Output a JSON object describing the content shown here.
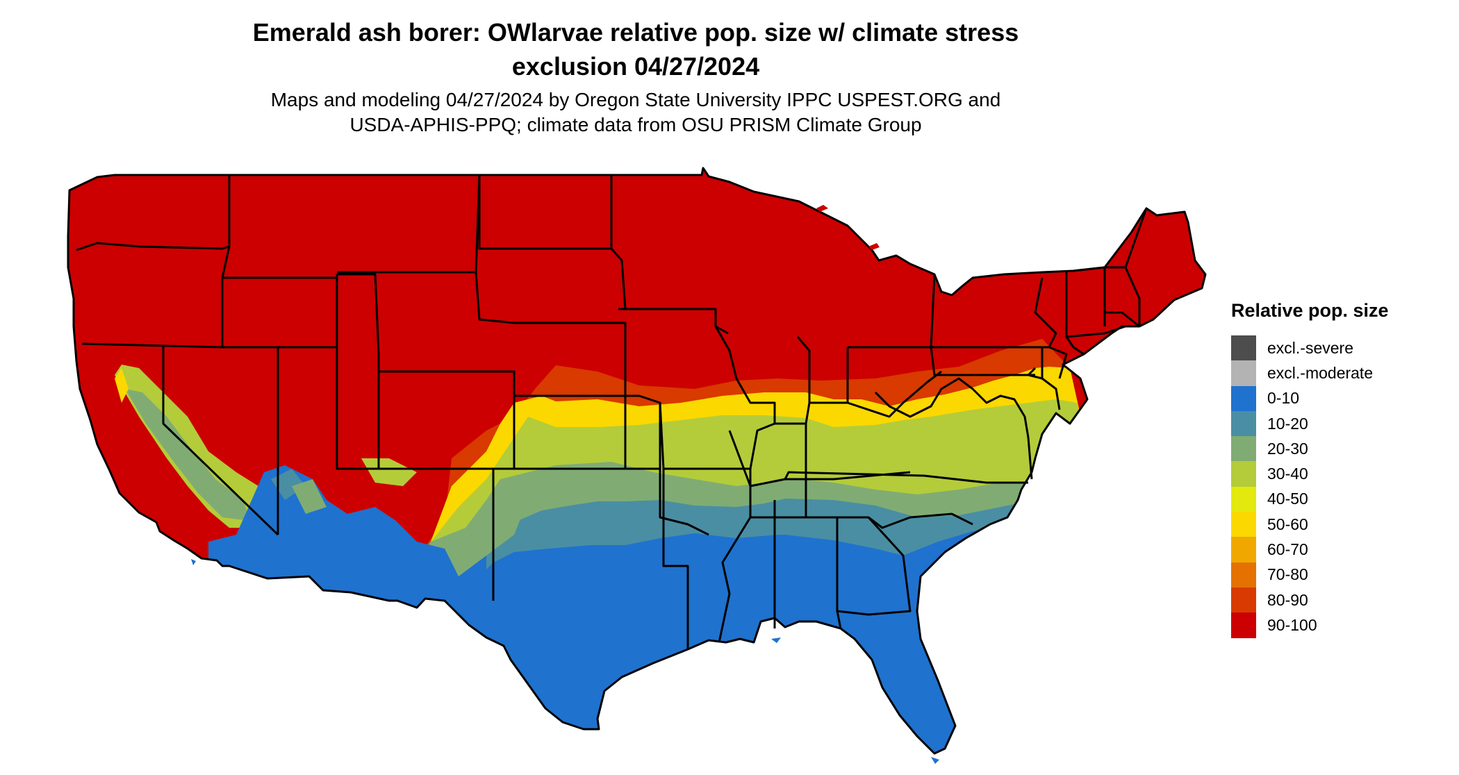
{
  "title": {
    "line1": "Emerald ash borer: OWlarvae relative pop. size w/ climate stress",
    "line2": "exclusion 04/27/2024"
  },
  "subtitle": {
    "line1": "Maps and modeling 04/27/2024 by Oregon State University IPPC USPEST.ORG and",
    "line2": "USDA-APHIS-PPQ; climate data from OSU PRISM Climate Group"
  },
  "legend": {
    "title": "Relative pop. size",
    "items": [
      {
        "label": "excl.-severe",
        "color": "#4d4d4d"
      },
      {
        "label": "excl.-moderate",
        "color": "#b3b3b3"
      },
      {
        "label": "0-10",
        "color": "#1f72ce"
      },
      {
        "label": "10-20",
        "color": "#4a8ea3"
      },
      {
        "label": "20-30",
        "color": "#80ac74"
      },
      {
        "label": "30-40",
        "color": "#b4cc3a"
      },
      {
        "label": "40-50",
        "color": "#e3e90c"
      },
      {
        "label": "50-60",
        "color": "#fbd800"
      },
      {
        "label": "60-70",
        "color": "#f0a800"
      },
      {
        "label": "70-80",
        "color": "#e47100"
      },
      {
        "label": "80-90",
        "color": "#d83a00"
      },
      {
        "label": "90-100",
        "color": "#cc0000"
      }
    ]
  }
}
